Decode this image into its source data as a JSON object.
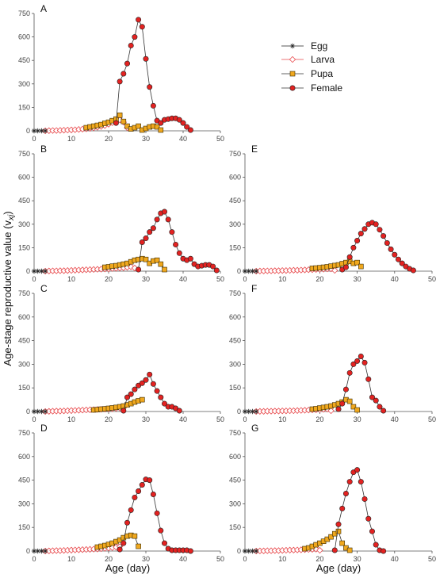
{
  "y_axis_title": "Age-stage reproductive value (v",
  "y_axis_subscript": "xj",
  "y_axis_close": ")",
  "x_axis_title": "Age (day)",
  "legend": [
    {
      "name": "Egg",
      "marker": "asterisk",
      "color": "#222222"
    },
    {
      "name": "Larva",
      "marker": "diamond",
      "color": "#e8474a"
    },
    {
      "name": "Pupa",
      "marker": "square",
      "color": "#f0a81e"
    },
    {
      "name": "Female",
      "marker": "circle",
      "color": "#e32221"
    }
  ],
  "chart_data": [
    {
      "panel": "A",
      "type": "line",
      "xlim": [
        0,
        50
      ],
      "ylim": [
        0,
        750
      ],
      "xticks": [
        0,
        10,
        20,
        30,
        40,
        50
      ],
      "yticks": [
        0,
        150,
        300,
        450,
        600,
        750
      ],
      "series": [
        {
          "name": "Egg",
          "x": [
            0,
            1,
            2,
            3
          ],
          "y": [
            0,
            0,
            0,
            0
          ]
        },
        {
          "name": "Larva",
          "x": [
            3,
            4,
            5,
            6,
            7,
            8,
            9,
            10,
            11,
            12,
            13,
            14,
            15,
            16,
            17,
            18,
            19,
            20,
            21,
            22,
            23,
            24,
            25
          ],
          "y": [
            0,
            1,
            2,
            2,
            3,
            4,
            5,
            6,
            7,
            9,
            11,
            13,
            16,
            19,
            23,
            28,
            34,
            42,
            52,
            62,
            70,
            55,
            20
          ]
        },
        {
          "name": "Pupa",
          "x": [
            14,
            15,
            16,
            17,
            18,
            19,
            20,
            21,
            22,
            23,
            24,
            25,
            26,
            27,
            28,
            29,
            30,
            31,
            32,
            33,
            34
          ],
          "y": [
            20,
            25,
            30,
            35,
            40,
            48,
            55,
            65,
            75,
            100,
            60,
            30,
            12,
            20,
            30,
            5,
            15,
            25,
            30,
            25,
            5
          ]
        },
        {
          "name": "Female",
          "x": [
            22,
            23,
            24,
            25,
            26,
            27,
            28,
            29,
            30,
            31,
            32,
            33,
            34,
            35,
            36,
            37,
            38,
            39,
            40,
            41,
            42
          ],
          "y": [
            50,
            315,
            365,
            430,
            545,
            600,
            710,
            665,
            460,
            280,
            160,
            65,
            50,
            70,
            75,
            80,
            80,
            70,
            50,
            25,
            5
          ]
        }
      ]
    },
    {
      "panel": "B",
      "type": "line",
      "xlim": [
        0,
        50
      ],
      "ylim": [
        0,
        750
      ],
      "xticks": [
        0,
        10,
        20,
        30,
        40,
        50
      ],
      "yticks": [
        0,
        150,
        300,
        450,
        600,
        750
      ],
      "series": [
        {
          "name": "Egg",
          "x": [
            0,
            1,
            2,
            3
          ],
          "y": [
            0,
            0,
            0,
            0
          ]
        },
        {
          "name": "Larva",
          "x": [
            3,
            4,
            5,
            6,
            7,
            8,
            9,
            10,
            11,
            12,
            13,
            14,
            15,
            16,
            17,
            18,
            19,
            20,
            21,
            22,
            23,
            24,
            25,
            26,
            27
          ],
          "y": [
            0,
            1,
            2,
            2,
            3,
            3,
            4,
            5,
            6,
            7,
            8,
            9,
            10,
            11,
            12,
            13,
            14,
            15,
            17,
            18,
            20,
            22,
            25,
            28,
            20
          ]
        },
        {
          "name": "Pupa",
          "x": [
            19,
            20,
            21,
            22,
            23,
            24,
            25,
            26,
            27,
            28,
            29,
            30,
            31,
            32,
            33,
            34,
            35
          ],
          "y": [
            25,
            28,
            32,
            35,
            40,
            45,
            50,
            60,
            70,
            75,
            80,
            75,
            50,
            65,
            70,
            45,
            10
          ]
        },
        {
          "name": "Female",
          "x": [
            28,
            29,
            30,
            31,
            32,
            33,
            34,
            35,
            36,
            37,
            38,
            39,
            40,
            41,
            42,
            43,
            44,
            45,
            46,
            47,
            48,
            49
          ],
          "y": [
            10,
            185,
            210,
            250,
            275,
            330,
            370,
            380,
            330,
            250,
            170,
            115,
            80,
            70,
            80,
            45,
            30,
            35,
            40,
            40,
            30,
            5
          ]
        }
      ]
    },
    {
      "panel": "E",
      "type": "line",
      "xlim": [
        0,
        50
      ],
      "ylim": [
        0,
        750
      ],
      "xticks": [
        0,
        10,
        20,
        30,
        40,
        50
      ],
      "yticks": [
        0,
        150,
        300,
        450,
        600,
        750
      ],
      "series": [
        {
          "name": "Egg",
          "x": [
            0,
            1,
            2,
            3
          ],
          "y": [
            0,
            0,
            0,
            0
          ]
        },
        {
          "name": "Larva",
          "x": [
            3,
            4,
            5,
            6,
            7,
            8,
            9,
            10,
            11,
            12,
            13,
            14,
            15,
            16,
            17,
            18,
            19,
            20,
            21,
            22,
            23,
            24
          ],
          "y": [
            0,
            1,
            1,
            2,
            2,
            3,
            3,
            4,
            4,
            5,
            6,
            6,
            7,
            8,
            9,
            10,
            11,
            12,
            13,
            15,
            15,
            5
          ]
        },
        {
          "name": "Pupa",
          "x": [
            18,
            19,
            20,
            21,
            22,
            23,
            24,
            25,
            26,
            27,
            28,
            29,
            30,
            31
          ],
          "y": [
            18,
            20,
            22,
            25,
            28,
            32,
            36,
            40,
            48,
            55,
            62,
            50,
            55,
            30
          ]
        },
        {
          "name": "Female",
          "x": [
            26,
            27,
            28,
            29,
            30,
            31,
            32,
            33,
            34,
            35,
            36,
            37,
            38,
            39,
            40,
            41,
            42,
            43,
            44,
            45
          ],
          "y": [
            10,
            25,
            90,
            150,
            195,
            240,
            270,
            300,
            310,
            300,
            265,
            225,
            180,
            140,
            105,
            75,
            50,
            30,
            15,
            5
          ]
        }
      ]
    },
    {
      "panel": "C",
      "type": "line",
      "xlim": [
        0,
        50
      ],
      "ylim": [
        0,
        750
      ],
      "xticks": [
        0,
        10,
        20,
        30,
        40,
        50
      ],
      "yticks": [
        0,
        150,
        300,
        450,
        600,
        750
      ],
      "series": [
        {
          "name": "Egg",
          "x": [
            0,
            1,
            2,
            3
          ],
          "y": [
            0,
            0,
            0,
            0
          ]
        },
        {
          "name": "Larva",
          "x": [
            3,
            4,
            5,
            6,
            7,
            8,
            9,
            10,
            11,
            12,
            13,
            14,
            15,
            16,
            17,
            18,
            19,
            20,
            21,
            22,
            23,
            24
          ],
          "y": [
            0,
            1,
            2,
            3,
            3,
            4,
            5,
            6,
            7,
            8,
            9,
            10,
            11,
            12,
            13,
            14,
            15,
            17,
            18,
            20,
            22,
            24
          ]
        },
        {
          "name": "Pupa",
          "x": [
            16,
            17,
            18,
            19,
            20,
            21,
            22,
            23,
            24,
            25,
            26,
            27,
            28,
            29
          ],
          "y": [
            10,
            12,
            15,
            17,
            20,
            23,
            26,
            30,
            35,
            42,
            50,
            60,
            68,
            75
          ]
        },
        {
          "name": "Female",
          "x": [
            24,
            25,
            26,
            27,
            28,
            29,
            30,
            31,
            32,
            33,
            34,
            35,
            36,
            37,
            38,
            39
          ],
          "y": [
            5,
            90,
            110,
            140,
            165,
            180,
            200,
            235,
            175,
            130,
            90,
            50,
            30,
            30,
            20,
            5
          ]
        }
      ]
    },
    {
      "panel": "F",
      "type": "line",
      "xlim": [
        0,
        50
      ],
      "ylim": [
        0,
        750
      ],
      "xticks": [
        0,
        10,
        20,
        30,
        40,
        50
      ],
      "yticks": [
        0,
        150,
        300,
        450,
        600,
        750
      ],
      "series": [
        {
          "name": "Egg",
          "x": [
            0,
            1,
            2,
            3
          ],
          "y": [
            0,
            0,
            0,
            0
          ]
        },
        {
          "name": "Larva",
          "x": [
            3,
            4,
            5,
            6,
            7,
            8,
            9,
            10,
            11,
            12,
            13,
            14,
            15,
            16,
            17,
            18,
            19,
            20,
            21,
            22,
            23
          ],
          "y": [
            0,
            1,
            1,
            2,
            2,
            3,
            3,
            4,
            4,
            5,
            5,
            6,
            7,
            8,
            9,
            10,
            11,
            13,
            14,
            15,
            5
          ]
        },
        {
          "name": "Pupa",
          "x": [
            18,
            19,
            20,
            21,
            22,
            23,
            24,
            25,
            26,
            27,
            28,
            29,
            30
          ],
          "y": [
            15,
            18,
            22,
            26,
            30,
            35,
            42,
            50,
            60,
            75,
            65,
            30,
            10
          ]
        },
        {
          "name": "Female",
          "x": [
            25,
            26,
            27,
            28,
            29,
            30,
            31,
            32,
            33,
            34,
            35,
            36,
            37
          ],
          "y": [
            15,
            50,
            140,
            245,
            300,
            320,
            350,
            310,
            205,
            90,
            70,
            30,
            5
          ]
        }
      ]
    },
    {
      "panel": "D",
      "type": "line",
      "xlim": [
        0,
        50
      ],
      "ylim": [
        0,
        750
      ],
      "xticks": [
        0,
        10,
        20,
        30,
        40,
        50
      ],
      "yticks": [
        0,
        150,
        300,
        450,
        600,
        750
      ],
      "series": [
        {
          "name": "Egg",
          "x": [
            0,
            1,
            2,
            3
          ],
          "y": [
            0,
            0,
            0,
            0
          ]
        },
        {
          "name": "Larva",
          "x": [
            3,
            4,
            5,
            6,
            7,
            8,
            9,
            10,
            11,
            12,
            13,
            14,
            15,
            16,
            17,
            18,
            19,
            20,
            21,
            22,
            23
          ],
          "y": [
            0,
            1,
            2,
            3,
            3,
            4,
            5,
            6,
            7,
            8,
            9,
            10,
            11,
            12,
            13,
            15,
            17,
            19,
            22,
            25,
            28
          ]
        },
        {
          "name": "Pupa",
          "x": [
            17,
            18,
            19,
            20,
            21,
            22,
            23,
            24,
            25,
            26,
            27,
            28
          ],
          "y": [
            25,
            30,
            35,
            42,
            50,
            60,
            70,
            85,
            95,
            100,
            95,
            30
          ]
        },
        {
          "name": "Female",
          "x": [
            23,
            24,
            25,
            26,
            27,
            28,
            29,
            30,
            31,
            32,
            33,
            34,
            35,
            36,
            37,
            38,
            39,
            40,
            41,
            42
          ],
          "y": [
            10,
            50,
            180,
            260,
            340,
            380,
            420,
            455,
            450,
            360,
            240,
            130,
            50,
            15,
            5,
            5,
            5,
            5,
            5,
            0
          ]
        }
      ]
    },
    {
      "panel": "G",
      "type": "line",
      "xlim": [
        0,
        50
      ],
      "ylim": [
        0,
        750
      ],
      "xticks": [
        0,
        10,
        20,
        30,
        40,
        50
      ],
      "yticks": [
        0,
        150,
        300,
        450,
        600,
        750
      ],
      "series": [
        {
          "name": "Egg",
          "x": [
            0,
            1,
            2,
            3
          ],
          "y": [
            0,
            0,
            0,
            0
          ]
        },
        {
          "name": "Larva",
          "x": [
            3,
            4,
            5,
            6,
            7,
            8,
            9,
            10,
            11,
            12,
            13,
            14,
            15,
            16,
            17,
            18,
            19,
            20
          ],
          "y": [
            0,
            1,
            1,
            2,
            2,
            3,
            3,
            4,
            5,
            6,
            6,
            7,
            8,
            9,
            10,
            11,
            12,
            5
          ]
        },
        {
          "name": "Pupa",
          "x": [
            16,
            17,
            18,
            19,
            20,
            21,
            22,
            23,
            24,
            25,
            26,
            27,
            28
          ],
          "y": [
            15,
            20,
            30,
            40,
            50,
            62,
            75,
            90,
            110,
            125,
            50,
            20,
            5
          ]
        },
        {
          "name": "Female",
          "x": [
            24,
            25,
            26,
            27,
            28,
            29,
            30,
            31,
            32,
            33,
            34,
            35,
            36,
            37
          ],
          "y": [
            5,
            170,
            270,
            365,
            440,
            500,
            515,
            440,
            330,
            205,
            125,
            40,
            5,
            0
          ]
        }
      ]
    }
  ]
}
